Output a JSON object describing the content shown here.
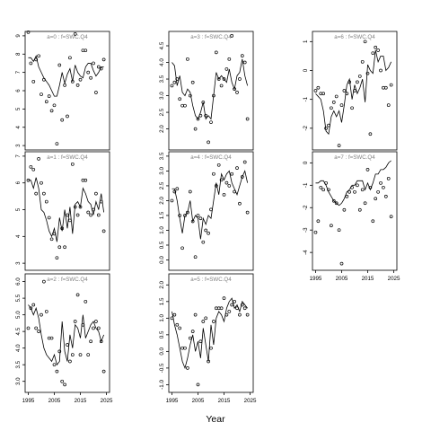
{
  "figure": {
    "xlabel": "Year"
  },
  "chart_data": [
    {
      "type": "line",
      "title": "a=0  :  f=SWC.Q4",
      "xlim": [
        1995,
        2025
      ],
      "ylim": [
        3,
        9
      ],
      "yticks": [
        3,
        4,
        5,
        6,
        7,
        8,
        9
      ],
      "x": [
        1995,
        1996,
        1997,
        1998,
        1999,
        2000,
        2001,
        2002,
        2003,
        2004,
        2005,
        2006,
        2007,
        2008,
        2009,
        2010,
        2011,
        2012,
        2013,
        2014,
        2015,
        2016,
        2017,
        2018,
        2019,
        2020,
        2021,
        2022,
        2023,
        2024
      ],
      "series": [
        {
          "kind": "line",
          "values": [
            7.8,
            7.8,
            7.6,
            7.9,
            7.3,
            7.0,
            6.7,
            6.5,
            6.3,
            6.0,
            5.7,
            5.7,
            6.3,
            7.0,
            6.4,
            6.9,
            7.2,
            6.5,
            7.4,
            7.0,
            6.8,
            6.7,
            7.3,
            7.5,
            7.5,
            7.1,
            6.8,
            7.0,
            7.3,
            7.3
          ]
        },
        {
          "kind": "points",
          "values": [
            9.2,
            7.5,
            6.5,
            7.7,
            7.9,
            5.8,
            6.6,
            5.4,
            5.7,
            4.9,
            5.2,
            3.1,
            7.4,
            4.4,
            6.3,
            4.6,
            7.8,
            6.5,
            9.1,
            6.3,
            6.6,
            8.2,
            8.2,
            7.0,
            6.7,
            7.5,
            5.9,
            7.3,
            7.2,
            7.7
          ]
        }
      ]
    },
    {
      "type": "line",
      "title": "a=3  :  f=SWC.Q4",
      "xlim": [
        1995,
        2025
      ],
      "ylim": [
        1.5,
        4.8
      ],
      "yticks": [
        2.0,
        2.5,
        3.0,
        3.5,
        4.0,
        4.5
      ],
      "x": [
        1995,
        1996,
        1997,
        1998,
        1999,
        2000,
        2001,
        2002,
        2003,
        2004,
        2005,
        2006,
        2007,
        2008,
        2009,
        2010,
        2011,
        2012,
        2013,
        2014,
        2015,
        2016,
        2017,
        2018,
        2019,
        2020,
        2021,
        2022,
        2023,
        2024
      ],
      "series": [
        {
          "kind": "line",
          "values": [
            4.0,
            3.9,
            3.3,
            3.6,
            3.1,
            3.0,
            3.2,
            3.1,
            2.7,
            2.4,
            2.3,
            2.5,
            2.8,
            2.3,
            2.4,
            2.3,
            3.0,
            3.7,
            3.5,
            3.6,
            3.5,
            3.4,
            3.8,
            3.4,
            3.2,
            3.6,
            3.7,
            4.1,
            3.6,
            3.3
          ]
        },
        {
          "kind": "points",
          "values": [
            3.3,
            3.4,
            3.5,
            2.9,
            2.7,
            2.7,
            4.1,
            3.0,
            3.4,
            2.0,
            2.3,
            2.4,
            2.8,
            2.4,
            1.6,
            2.2,
            3.0,
            4.3,
            3.5,
            3.3,
            3.5,
            3.8,
            4.1,
            4.8,
            3.2,
            3.1,
            3.5,
            4.2,
            4.0,
            2.3
          ]
        }
      ]
    },
    {
      "type": "line",
      "title": "a=6  :  f=SWC.Q4",
      "xlim": [
        1995,
        2025
      ],
      "ylim": [
        -2.6,
        1.2
      ],
      "yticks": [
        -2,
        -1,
        0,
        1
      ],
      "x": [
        1995,
        1996,
        1997,
        1998,
        1999,
        2000,
        2001,
        2002,
        2003,
        2004,
        2005,
        2006,
        2007,
        2008,
        2009,
        2010,
        2011,
        2012,
        2013,
        2014,
        2015,
        2016,
        2017,
        2018,
        2019,
        2020,
        2021,
        2022,
        2023,
        2024
      ],
      "series": [
        {
          "kind": "line",
          "values": [
            -0.8,
            -0.9,
            -1.0,
            -1.4,
            -2.1,
            -2.2,
            -1.6,
            -1.4,
            -1.6,
            -1.4,
            -1.8,
            -1.2,
            -0.5,
            -0.3,
            -1.0,
            -0.5,
            -0.8,
            -0.6,
            -0.3,
            -1.1,
            0.2,
            0.0,
            -0.1,
            0.7,
            0.3,
            0.5,
            0.5,
            0.0,
            0.1,
            0.3
          ]
        },
        {
          "kind": "points",
          "values": [
            -0.7,
            -0.6,
            -0.8,
            -0.8,
            -2.0,
            -1.9,
            -1.3,
            -1.1,
            -0.9,
            -2.6,
            -1.2,
            -0.7,
            -0.8,
            -0.4,
            -1.3,
            -0.7,
            -0.4,
            -0.2,
            0.3,
            1.0,
            -0.1,
            -2.2,
            0.6,
            0.8,
            0.7,
            0.0,
            -0.6,
            -0.6,
            -1.2,
            -0.5
          ]
        }
      ]
    },
    {
      "type": "line",
      "title": "a=1  :  f=SWC.Q4",
      "xlim": [
        1995,
        2025
      ],
      "ylim": [
        2.9,
        7.0
      ],
      "yticks": [
        3,
        4,
        5,
        6,
        7
      ],
      "x": [
        1995,
        1996,
        1997,
        1998,
        1999,
        2000,
        2001,
        2002,
        2003,
        2004,
        2005,
        2006,
        2007,
        2008,
        2009,
        2010,
        2011,
        2012,
        2013,
        2014,
        2015,
        2016,
        2017,
        2018,
        2019,
        2020,
        2021,
        2022,
        2023,
        2024
      ],
      "series": [
        {
          "kind": "line",
          "values": [
            6.1,
            6.1,
            5.8,
            6.2,
            5.8,
            5.0,
            4.9,
            4.6,
            4.2,
            4.0,
            4.3,
            3.8,
            4.7,
            4.2,
            5.0,
            4.3,
            5.1,
            4.1,
            5.2,
            5.3,
            5.1,
            5.8,
            5.6,
            5.3,
            5.2,
            4.8,
            5.3,
            5.0,
            5.6,
            4.9
          ]
        },
        {
          "kind": "points",
          "values": [
            6.1,
            6.6,
            6.5,
            5.6,
            6.9,
            6.0,
            5.6,
            5.3,
            4.7,
            3.9,
            4.1,
            3.2,
            3.6,
            4.3,
            3.6,
            4.8,
            4.6,
            6.7,
            5.1,
            4.8,
            5.1,
            6.1,
            6.1,
            4.9,
            4.8,
            5.0,
            5.6,
            4.8,
            5.3,
            4.2
          ]
        }
      ]
    },
    {
      "type": "line",
      "title": "a=4  :  f=SWC.Q4",
      "xlim": [
        1995,
        2025
      ],
      "ylim": [
        -0.2,
        3.5
      ],
      "yticks": [
        0.0,
        0.5,
        1.0,
        1.5,
        2.0,
        2.5,
        3.0,
        3.5
      ],
      "x": [
        1995,
        1996,
        1997,
        1998,
        1999,
        2000,
        2001,
        2002,
        2003,
        2004,
        2005,
        2006,
        2007,
        2008,
        2009,
        2010,
        2011,
        2012,
        2013,
        2014,
        2015,
        2016,
        2017,
        2018,
        2019,
        2020,
        2021,
        2022,
        2023,
        2024
      ],
      "series": [
        {
          "kind": "line",
          "values": [
            2.4,
            2.4,
            2.0,
            1.4,
            0.9,
            1.5,
            1.6,
            2.0,
            1.3,
            1.5,
            1.4,
            0.7,
            1.4,
            1.2,
            1.5,
            1.4,
            2.0,
            2.6,
            2.2,
            2.9,
            2.7,
            2.9,
            3.0,
            2.6,
            2.4,
            2.2,
            2.5,
            2.8,
            3.0,
            2.6
          ]
        },
        {
          "kind": "points",
          "values": [
            2.0,
            2.3,
            2.4,
            1.5,
            0.4,
            1.5,
            1.6,
            2.3,
            1.3,
            0.1,
            1.5,
            1.4,
            0.6,
            1.0,
            0.9,
            1.7,
            2.9,
            2.5,
            3.2,
            2.7,
            2.2,
            2.6,
            2.5,
            2.9,
            2.3,
            3.1,
            1.9,
            2.8,
            3.3,
            1.6
          ]
        }
      ]
    },
    {
      "type": "line",
      "title": "a=7  :  f=SWC.Q4",
      "xlim": [
        1995,
        2025
      ],
      "ylim": [
        -4.6,
        0.3
      ],
      "yticks": [
        -4,
        -3,
        -2,
        -1,
        0
      ],
      "x": [
        1995,
        1996,
        1997,
        1998,
        1999,
        2000,
        2001,
        2002,
        2003,
        2004,
        2005,
        2006,
        2007,
        2008,
        2009,
        2010,
        2011,
        2012,
        2013,
        2014,
        2015,
        2016,
        2017,
        2018,
        2019,
        2020,
        2021,
        2022,
        2023,
        2024
      ],
      "series": [
        {
          "kind": "line",
          "values": [
            -0.9,
            -0.9,
            -0.8,
            -0.8,
            -1.0,
            -1.3,
            -1.5,
            -1.7,
            -1.8,
            -1.9,
            -1.8,
            -1.6,
            -1.3,
            -1.2,
            -1.0,
            -1.0,
            -0.8,
            -0.8,
            -0.8,
            -1.2,
            -0.9,
            -1.2,
            -0.9,
            -0.5,
            -0.5,
            -0.3,
            -0.3,
            -0.2,
            0.0,
            0.1
          ]
        },
        {
          "kind": "points",
          "values": [
            -3.1,
            -2.6,
            -1.1,
            -1.2,
            -0.9,
            -1.2,
            -2.8,
            -1.7,
            -1.8,
            -3.0,
            -4.5,
            -2.1,
            -1.5,
            -1.3,
            -1.1,
            -1.3,
            -1.0,
            -2.1,
            -1.2,
            -1.8,
            -0.3,
            -1.1,
            -2.6,
            -1.6,
            -1.3,
            -0.9,
            -1.1,
            -1.5,
            -0.7,
            -2.4
          ]
        }
      ]
    },
    {
      "type": "line",
      "title": "a=2  :  f=SWC.Q4",
      "xlim": [
        1995,
        2025
      ],
      "ylim": [
        2.8,
        6.1
      ],
      "yticks": [
        3.0,
        3.5,
        4.0,
        4.5,
        5.0,
        5.5,
        6.0
      ],
      "x": [
        1995,
        1996,
        1997,
        1998,
        1999,
        2000,
        2001,
        2002,
        2003,
        2004,
        2005,
        2006,
        2007,
        2008,
        2009,
        2010,
        2011,
        2012,
        2013,
        2014,
        2015,
        2016,
        2017,
        2018,
        2019,
        2020,
        2021,
        2022,
        2023,
        2024
      ],
      "series": [
        {
          "kind": "line",
          "values": [
            5.3,
            5.2,
            5.0,
            5.2,
            4.9,
            4.4,
            4.0,
            3.8,
            3.7,
            3.6,
            3.8,
            3.5,
            3.6,
            4.8,
            3.9,
            3.6,
            4.4,
            4.0,
            4.7,
            4.6,
            4.3,
            5.0,
            4.3,
            4.5,
            4.7,
            4.8,
            4.6,
            4.5,
            4.2,
            4.4
          ]
        },
        {
          "kind": "points",
          "values": [
            4.6,
            5.2,
            5.3,
            4.6,
            4.5,
            5.0,
            6.0,
            5.1,
            4.3,
            4.3,
            3.5,
            3.3,
            3.9,
            3.0,
            2.9,
            4.1,
            3.6,
            3.8,
            4.8,
            5.6,
            3.8,
            4.7,
            5.4,
            3.8,
            4.2,
            4.6,
            4.8,
            4.6,
            4.2,
            3.3
          ]
        }
      ]
    },
    {
      "type": "line",
      "title": "a=5  :  f=SWC.Q4",
      "xlim": [
        1995,
        2025
      ],
      "ylim": [
        -1.1,
        2.2
      ],
      "yticks": [
        -1.0,
        -0.5,
        0.0,
        0.5,
        1.0,
        1.5,
        2.0
      ],
      "x": [
        1995,
        1996,
        1997,
        1998,
        1999,
        2000,
        2001,
        2002,
        2003,
        2004,
        2005,
        2006,
        2007,
        2008,
        2009,
        2010,
        2011,
        2012,
        2013,
        2014,
        2015,
        2016,
        2017,
        2018,
        2019,
        2020,
        2021,
        2022,
        2023,
        2024
      ],
      "series": [
        {
          "kind": "line",
          "values": [
            1.2,
            0.8,
            0.5,
            0.1,
            -0.3,
            -0.5,
            -0.2,
            0.2,
            0.5,
            0.0,
            0.3,
            -0.2,
            0.7,
            0.2,
            -0.3,
            0.8,
            0.2,
            1.0,
            1.2,
            1.1,
            0.9,
            1.3,
            1.5,
            1.6,
            1.3,
            1.4,
            1.2,
            1.5,
            1.4,
            1.3
          ]
        },
        {
          "kind": "points",
          "values": [
            1.0,
            1.1,
            0.8,
            0.7,
            0.1,
            0.1,
            -0.5,
            0.4,
            0.6,
            1.1,
            -1.0,
            0.3,
            0.9,
            1.0,
            -0.3,
            0.1,
            0.9,
            1.3,
            1.3,
            1.3,
            1.6,
            1.1,
            1.2,
            1.4,
            1.5,
            1.3,
            1.1,
            1.4,
            1.3,
            1.1
          ]
        }
      ]
    }
  ]
}
